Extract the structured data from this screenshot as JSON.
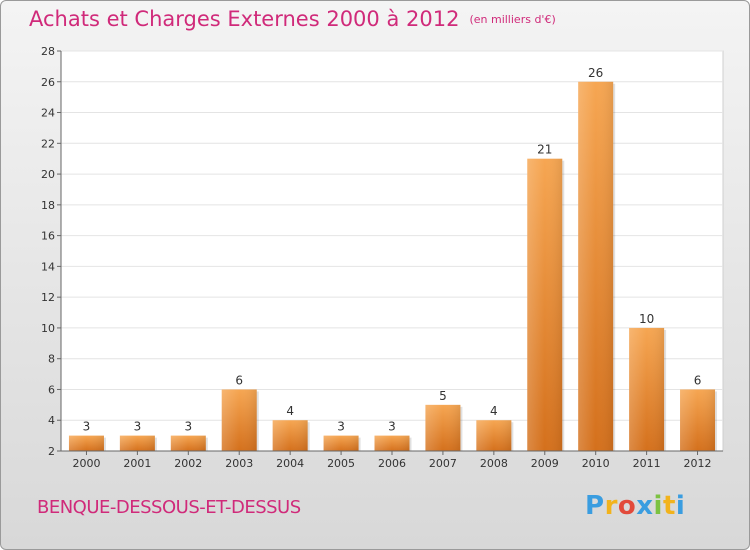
{
  "title": "Achats et Charges Externes 2000 à 2012",
  "subtitle": "(en milliers d'€)",
  "commune": "BENQUE-DESSOUS-ET-DESSUS",
  "logo": "Proxiti",
  "colors": {
    "accent": "#d02a7a",
    "bar_light": "#f6a652",
    "bar_dark": "#d4701c"
  },
  "chart_data": {
    "type": "bar",
    "title": "Achats et Charges Externes 2000 à 2012",
    "subtitle": "(en milliers d'€)",
    "categories": [
      "2000",
      "2001",
      "2002",
      "2003",
      "2004",
      "2005",
      "2006",
      "2007",
      "2008",
      "2009",
      "2010",
      "2011",
      "2012"
    ],
    "values": [
      3,
      3,
      3,
      6,
      4,
      3,
      3,
      5,
      4,
      21,
      26,
      10,
      6
    ],
    "ylim": [
      2,
      28
    ],
    "yticks": [
      2,
      4,
      6,
      8,
      10,
      12,
      14,
      16,
      18,
      20,
      22,
      24,
      26,
      28
    ],
    "grid": true,
    "xlabel": "",
    "ylabel": ""
  }
}
